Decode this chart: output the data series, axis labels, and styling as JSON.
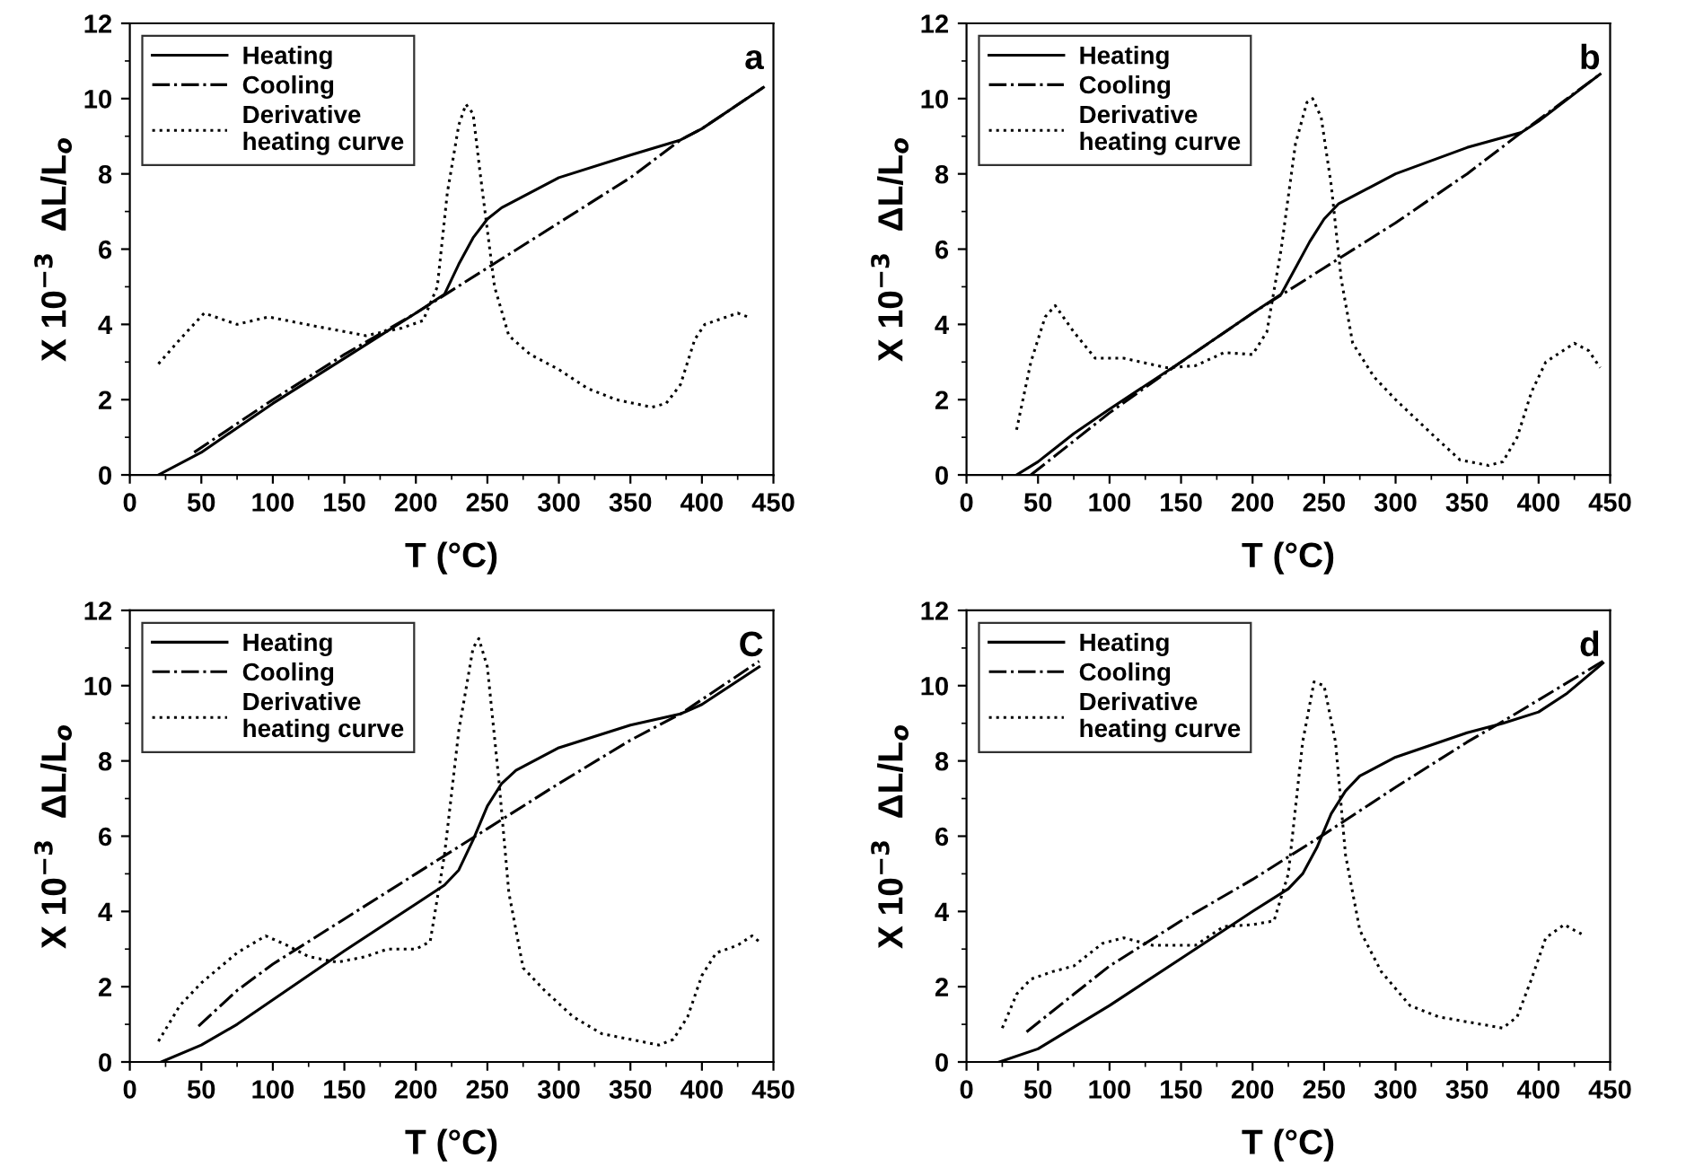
{
  "chart_data": [
    {
      "type": "line",
      "xlabel": "T (°C)",
      "ylabel": "X 10$^{−3}$  ΔL/L$_{o}$",
      "annotations": [
        "a"
      ],
      "xlim": [
        0,
        450
      ],
      "ylim": [
        0,
        12
      ],
      "xticks": [
        0,
        50,
        100,
        150,
        200,
        250,
        300,
        350,
        400,
        450
      ],
      "yticks": [
        0,
        2,
        4,
        6,
        8,
        10,
        12
      ],
      "grid": false,
      "legend": "top left",
      "marker": "none",
      "series": [
        {
          "name": "Heating",
          "color": "#000000",
          "line_style": "solid",
          "x": [
            20,
            50,
            100,
            150,
            200,
            220,
            230,
            240,
            250,
            260,
            280,
            300,
            350,
            385,
            400,
            443
          ],
          "values": [
            0,
            0.6,
            1.9,
            3.1,
            4.3,
            4.8,
            5.6,
            6.3,
            6.8,
            7.1,
            7.5,
            7.9,
            8.5,
            8.9,
            9.2,
            10.3
          ]
        },
        {
          "name": "Cooling",
          "color": "#000000",
          "line_style": "dashdot",
          "x": [
            45,
            100,
            150,
            200,
            250,
            300,
            350,
            385,
            400,
            443
          ],
          "values": [
            0.6,
            2.0,
            3.2,
            4.3,
            5.5,
            6.7,
            7.9,
            8.9,
            9.2,
            10.3
          ]
        },
        {
          "name": "Derivative\nheating curve",
          "color": "#000000",
          "line_style": "dotted",
          "x": [
            20,
            35,
            52,
            75,
            97,
            130,
            165,
            190,
            205,
            215,
            222,
            230,
            235,
            240,
            245,
            255,
            265,
            280,
            300,
            320,
            340,
            365,
            375,
            385,
            395,
            402,
            425,
            432
          ],
          "values": [
            2.95,
            3.6,
            4.3,
            4.0,
            4.2,
            3.95,
            3.7,
            3.9,
            4.1,
            5.0,
            7.5,
            9.3,
            9.85,
            9.6,
            8.0,
            5.0,
            3.7,
            3.2,
            2.8,
            2.3,
            2.0,
            1.8,
            1.9,
            2.4,
            3.6,
            4.0,
            4.3,
            4.2
          ]
        }
      ]
    },
    {
      "type": "line",
      "xlabel": "T (°C)",
      "ylabel": "X 10$^{−3}$  ΔL/L$_{o}$",
      "annotations": [
        "b"
      ],
      "xlim": [
        0,
        450
      ],
      "ylim": [
        0,
        12
      ],
      "xticks": [
        0,
        50,
        100,
        150,
        200,
        250,
        300,
        350,
        400,
        450
      ],
      "yticks": [
        0,
        2,
        4,
        6,
        8,
        10,
        12
      ],
      "grid": false,
      "legend": "top left",
      "marker": "none",
      "series": [
        {
          "name": "Heating",
          "color": "#000000",
          "line_style": "solid",
          "x": [
            35,
            50,
            75,
            100,
            150,
            200,
            220,
            230,
            240,
            250,
            260,
            280,
            300,
            350,
            388,
            400,
            443
          ],
          "values": [
            0,
            0.35,
            1.1,
            1.75,
            3.0,
            4.3,
            4.8,
            5.5,
            6.2,
            6.8,
            7.2,
            7.6,
            8.0,
            8.7,
            9.1,
            9.4,
            10.65
          ]
        },
        {
          "name": "Cooling",
          "color": "#000000",
          "line_style": "dashdot",
          "x": [
            45,
            100,
            150,
            200,
            250,
            300,
            350,
            388,
            443
          ],
          "values": [
            0,
            1.65,
            3.0,
            4.3,
            5.5,
            6.7,
            8.0,
            9.1,
            10.65
          ]
        },
        {
          "name": "Derivative\nheating curve",
          "color": "#000000",
          "line_style": "dotted",
          "x": [
            35,
            45,
            55,
            62,
            75,
            90,
            110,
            140,
            160,
            180,
            200,
            210,
            220,
            230,
            238,
            242,
            248,
            255,
            262,
            270,
            285,
            300,
            325,
            345,
            365,
            375,
            385,
            395,
            405,
            425,
            435,
            443
          ],
          "values": [
            1.2,
            3.0,
            4.2,
            4.5,
            3.8,
            3.1,
            3.1,
            2.85,
            2.9,
            3.25,
            3.2,
            3.8,
            6.0,
            8.8,
            9.9,
            10.0,
            9.5,
            7.7,
            5.2,
            3.5,
            2.6,
            2.0,
            1.1,
            0.4,
            0.25,
            0.35,
            1.0,
            2.2,
            3.0,
            3.5,
            3.3,
            2.85
          ]
        }
      ]
    },
    {
      "type": "line",
      "xlabel": "T (°C)",
      "ylabel": "X 10$^{−3}$  ΔL/L$_{o}$",
      "annotations": [
        "C"
      ],
      "xlim": [
        0,
        450
      ],
      "ylim": [
        0,
        12
      ],
      "xticks": [
        0,
        50,
        100,
        150,
        200,
        250,
        300,
        350,
        400,
        450
      ],
      "yticks": [
        0,
        2,
        4,
        6,
        8,
        10,
        12
      ],
      "grid": false,
      "legend": "top left",
      "marker": "none",
      "series": [
        {
          "name": "Heating",
          "color": "#000000",
          "line_style": "solid",
          "x": [
            22,
            50,
            75,
            100,
            150,
            200,
            220,
            230,
            240,
            250,
            260,
            270,
            300,
            350,
            385,
            400,
            440
          ],
          "values": [
            0,
            0.45,
            1.0,
            1.65,
            2.95,
            4.2,
            4.7,
            5.1,
            5.9,
            6.8,
            7.4,
            7.75,
            8.35,
            8.95,
            9.25,
            9.5,
            10.5
          ]
        },
        {
          "name": "Cooling",
          "color": "#000000",
          "line_style": "dashdot",
          "x": [
            48,
            75,
            100,
            150,
            200,
            250,
            300,
            350,
            385,
            440
          ],
          "values": [
            0.95,
            1.9,
            2.6,
            3.8,
            5.0,
            6.2,
            7.4,
            8.55,
            9.25,
            10.65
          ]
        },
        {
          "name": "Derivative\nheating curve",
          "color": "#000000",
          "line_style": "dotted",
          "x": [
            20,
            35,
            50,
            75,
            95,
            110,
            125,
            145,
            165,
            180,
            200,
            210,
            220,
            230,
            240,
            244,
            250,
            258,
            265,
            275,
            290,
            310,
            330,
            350,
            370,
            380,
            390,
            400,
            410,
            425,
            435,
            440
          ],
          "values": [
            0.55,
            1.5,
            2.1,
            2.9,
            3.35,
            3.1,
            2.8,
            2.65,
            2.8,
            3.0,
            3.0,
            3.2,
            5.5,
            8.8,
            11.0,
            11.25,
            10.5,
            7.5,
            4.5,
            2.5,
            1.9,
            1.2,
            0.75,
            0.6,
            0.45,
            0.6,
            1.2,
            2.3,
            2.9,
            3.1,
            3.35,
            3.2
          ]
        }
      ]
    },
    {
      "type": "line",
      "xlabel": "T (°C)",
      "ylabel": "X 10$^{−3}$  ΔL/L$_{o}$",
      "annotations": [
        "d"
      ],
      "xlim": [
        0,
        450
      ],
      "ylim": [
        0,
        12
      ],
      "xticks": [
        0,
        50,
        100,
        150,
        200,
        250,
        300,
        350,
        400,
        450
      ],
      "yticks": [
        0,
        2,
        4,
        6,
        8,
        10,
        12
      ],
      "grid": false,
      "legend": "top left",
      "marker": "none",
      "series": [
        {
          "name": "Heating",
          "color": "#000000",
          "line_style": "solid",
          "x": [
            23,
            50,
            100,
            150,
            200,
            225,
            235,
            245,
            255,
            265,
            275,
            300,
            350,
            375,
            400,
            420,
            445
          ],
          "values": [
            0,
            0.35,
            1.5,
            2.75,
            4.0,
            4.6,
            5.0,
            5.7,
            6.6,
            7.2,
            7.6,
            8.1,
            8.75,
            9.0,
            9.3,
            9.8,
            10.6
          ]
        },
        {
          "name": "Cooling",
          "color": "#000000",
          "line_style": "dashdot",
          "x": [
            42,
            75,
            100,
            150,
            200,
            250,
            300,
            350,
            375,
            445
          ],
          "values": [
            0.8,
            1.8,
            2.55,
            3.75,
            4.85,
            6.05,
            7.3,
            8.5,
            9.05,
            10.65
          ]
        },
        {
          "name": "Derivative\nheating curve",
          "color": "#000000",
          "line_style": "dotted",
          "x": [
            25,
            35,
            45,
            60,
            75,
            95,
            110,
            130,
            160,
            180,
            200,
            215,
            225,
            235,
            243,
            250,
            258,
            265,
            275,
            290,
            310,
            330,
            360,
            375,
            385,
            395,
            405,
            418,
            425,
            430
          ],
          "values": [
            0.9,
            1.8,
            2.2,
            2.4,
            2.55,
            3.15,
            3.3,
            3.1,
            3.1,
            3.6,
            3.65,
            3.75,
            5.0,
            8.5,
            10.1,
            10.0,
            8.5,
            5.5,
            3.5,
            2.4,
            1.5,
            1.2,
            1.0,
            0.9,
            1.2,
            2.2,
            3.3,
            3.65,
            3.5,
            3.4
          ]
        }
      ]
    }
  ]
}
